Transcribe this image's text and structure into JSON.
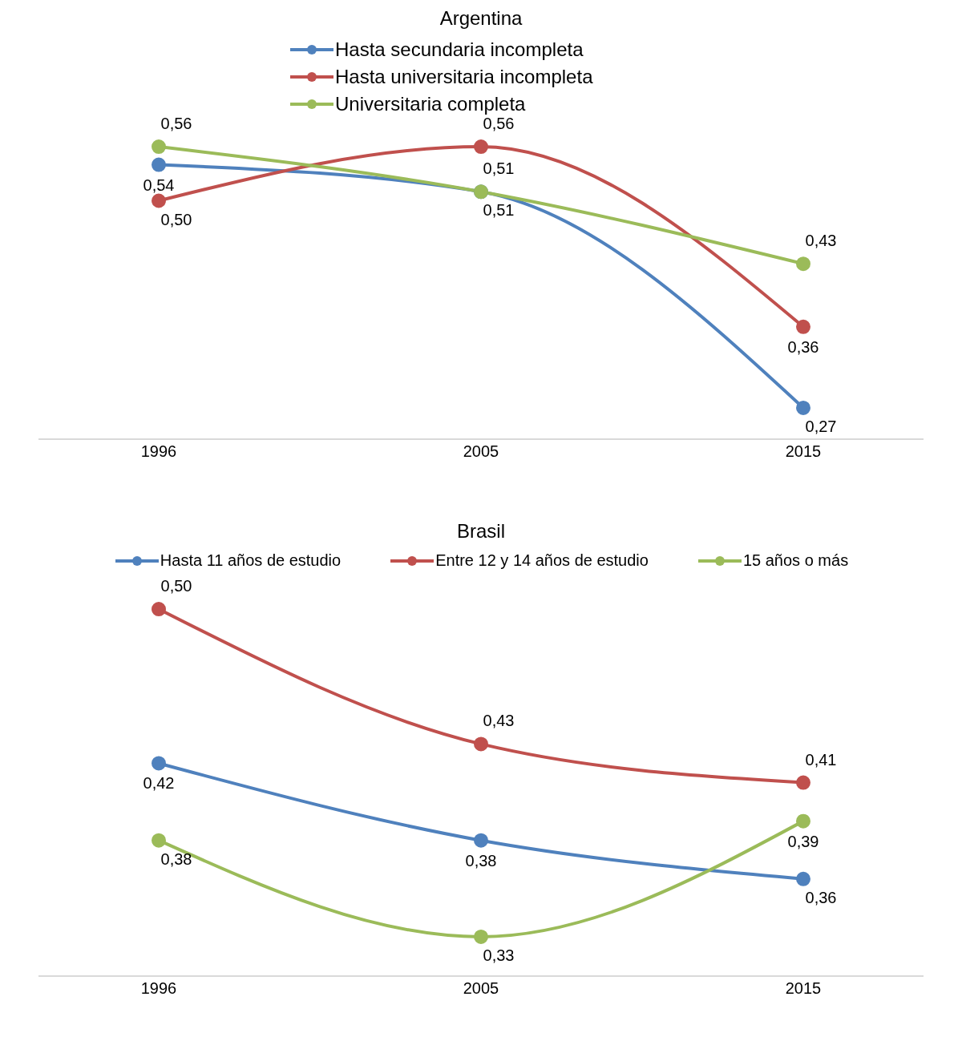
{
  "chart_data": [
    {
      "type": "line",
      "title": "Argentina",
      "categories": [
        "1996",
        "2005",
        "2015"
      ],
      "legend": "top",
      "marker": "circle",
      "tick_labels": "x",
      "series": [
        {
          "name": "Hasta secundaria incompleta",
          "color": "#4f81bd",
          "values": [
            0.54,
            0.51,
            0.27
          ],
          "value_labels": [
            "0,54",
            "0,51",
            "0,27"
          ]
        },
        {
          "name": "Hasta universitaria incompleta",
          "color": "#c0504d",
          "values": [
            0.5,
            0.56,
            0.36
          ],
          "value_labels": [
            "0,50",
            "0,56",
            "0,36"
          ]
        },
        {
          "name": "Universitaria completa",
          "color": "#9bbb59",
          "values": [
            0.56,
            0.51,
            0.43
          ],
          "value_labels": [
            "0,56",
            "0,51",
            "0,43"
          ]
        }
      ]
    },
    {
      "type": "line",
      "title": "Brasil",
      "categories": [
        "1996",
        "2005",
        "2015"
      ],
      "legend": "top",
      "marker": "circle",
      "tick_labels": "x",
      "series": [
        {
          "name": "Hasta 11 años de estudio",
          "color": "#4f81bd",
          "values": [
            0.42,
            0.38,
            0.36
          ],
          "value_labels": [
            "0,42",
            "0,38",
            "0,36"
          ]
        },
        {
          "name": "Entre 12 y 14 años de estudio",
          "color": "#c0504d",
          "values": [
            0.5,
            0.43,
            0.41
          ],
          "value_labels": [
            "0,50",
            "0,43",
            "0,41"
          ]
        },
        {
          "name": "15 años o más",
          "color": "#9bbb59",
          "values": [
            0.38,
            0.33,
            0.39
          ],
          "value_labels": [
            "0,38",
            "0,33",
            "0,39"
          ]
        }
      ]
    }
  ]
}
